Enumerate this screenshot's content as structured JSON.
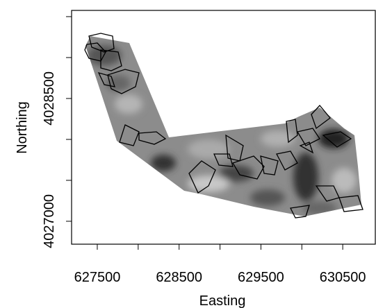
{
  "chart_data": {
    "type": "map",
    "xlabel": "Easting",
    "ylabel": "Northing",
    "xlim": [
      627186,
      630898
    ],
    "ylim": [
      4026720,
      4029576
    ],
    "xticks": [
      627500,
      628500,
      629500,
      630500
    ],
    "xticks_minor": [
      628000,
      629000,
      630000
    ],
    "yticks": [
      4027000,
      4028500
    ],
    "yticks_minor": [
      4027500,
      4028000,
      4029000,
      4029500
    ]
  }
}
